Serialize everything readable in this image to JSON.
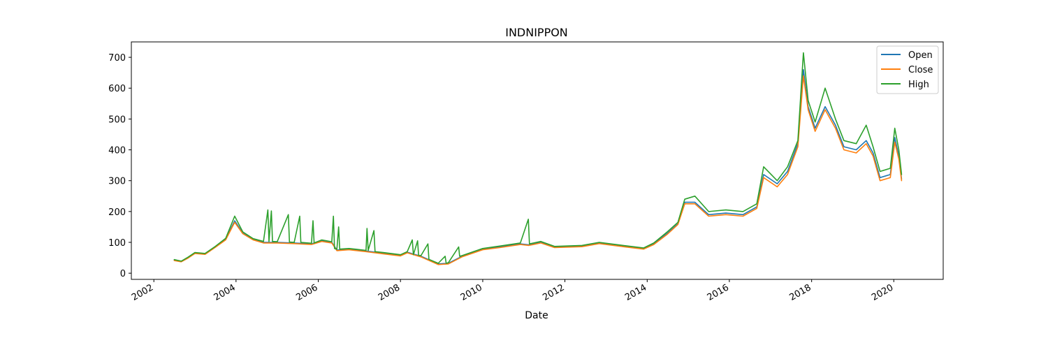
{
  "chart_data": {
    "type": "line",
    "title": "INDNIPPON",
    "xlabel": "Date",
    "ylabel": "",
    "x_axis_kind": "date",
    "xlim": [
      "2001-06-15",
      "2021-03-15"
    ],
    "ylim": [
      -20,
      750
    ],
    "x_ticks": [
      "2002",
      "2004",
      "2006",
      "2008",
      "2010",
      "2012",
      "2014",
      "2016",
      "2018",
      "2020"
    ],
    "y_ticks": [
      0,
      100,
      200,
      300,
      400,
      500,
      600,
      700
    ],
    "grid": false,
    "legend_position": "upper right",
    "colors": {
      "Open": "#1f77b4",
      "Close": "#ff7f0e",
      "High": "#2ca02c"
    },
    "series": [
      {
        "name": "Open",
        "points": [
          [
            "2002-07-01",
            42
          ],
          [
            "2002-09-01",
            38
          ],
          [
            "2002-11-01",
            50
          ],
          [
            "2003-01-01",
            65
          ],
          [
            "2003-04-01",
            62
          ],
          [
            "2003-07-01",
            85
          ],
          [
            "2003-10-01",
            110
          ],
          [
            "2003-12-20",
            170
          ],
          [
            "2004-03-01",
            130
          ],
          [
            "2004-06-01",
            110
          ],
          [
            "2004-09-01",
            100
          ],
          [
            "2005-01-01",
            100
          ],
          [
            "2005-06-01",
            98
          ],
          [
            "2005-11-01",
            95
          ],
          [
            "2006-02-01",
            105
          ],
          [
            "2006-05-01",
            100
          ],
          [
            "2006-06-15",
            75
          ],
          [
            "2006-10-01",
            78
          ],
          [
            "2007-03-01",
            72
          ],
          [
            "2007-08-01",
            65
          ],
          [
            "2008-01-01",
            58
          ],
          [
            "2008-03-01",
            68
          ],
          [
            "2008-07-01",
            55
          ],
          [
            "2008-12-01",
            30
          ],
          [
            "2009-03-01",
            32
          ],
          [
            "2009-07-01",
            55
          ],
          [
            "2010-01-01",
            78
          ],
          [
            "2010-06-01",
            85
          ],
          [
            "2010-12-01",
            95
          ],
          [
            "2011-02-15",
            92
          ],
          [
            "2011-06-01",
            100
          ],
          [
            "2011-10-01",
            85
          ],
          [
            "2012-06-01",
            88
          ],
          [
            "2012-11-01",
            98
          ],
          [
            "2013-06-01",
            88
          ],
          [
            "2013-12-01",
            80
          ],
          [
            "2014-03-01",
            95
          ],
          [
            "2014-07-01",
            130
          ],
          [
            "2014-10-01",
            160
          ],
          [
            "2014-12-01",
            230
          ],
          [
            "2015-03-01",
            230
          ],
          [
            "2015-07-01",
            190
          ],
          [
            "2015-12-01",
            195
          ],
          [
            "2016-05-01",
            190
          ],
          [
            "2016-09-01",
            215
          ],
          [
            "2016-11-01",
            320
          ],
          [
            "2017-03-01",
            290
          ],
          [
            "2017-06-01",
            330
          ],
          [
            "2017-09-01",
            420
          ],
          [
            "2017-10-20",
            660
          ],
          [
            "2017-12-01",
            540
          ],
          [
            "2018-02-01",
            470
          ],
          [
            "2018-05-01",
            540
          ],
          [
            "2018-08-01",
            480
          ],
          [
            "2018-10-15",
            410
          ],
          [
            "2019-02-01",
            400
          ],
          [
            "2019-05-01",
            430
          ],
          [
            "2019-07-01",
            390
          ],
          [
            "2019-09-01",
            310
          ],
          [
            "2019-12-01",
            320
          ],
          [
            "2020-01-10",
            440
          ],
          [
            "2020-02-15",
            380
          ],
          [
            "2020-03-10",
            305
          ]
        ]
      },
      {
        "name": "Close",
        "points": [
          [
            "2002-07-01",
            41
          ],
          [
            "2002-09-01",
            37
          ],
          [
            "2002-11-01",
            49
          ],
          [
            "2003-01-01",
            64
          ],
          [
            "2003-04-01",
            61
          ],
          [
            "2003-07-01",
            84
          ],
          [
            "2003-10-01",
            108
          ],
          [
            "2003-12-20",
            165
          ],
          [
            "2004-03-01",
            128
          ],
          [
            "2004-06-01",
            108
          ],
          [
            "2004-09-01",
            98
          ],
          [
            "2005-01-01",
            98
          ],
          [
            "2005-06-01",
            96
          ],
          [
            "2005-11-01",
            93
          ],
          [
            "2006-02-01",
            103
          ],
          [
            "2006-05-01",
            98
          ],
          [
            "2006-06-15",
            73
          ],
          [
            "2006-10-01",
            76
          ],
          [
            "2007-03-01",
            70
          ],
          [
            "2007-08-01",
            63
          ],
          [
            "2008-01-01",
            56
          ],
          [
            "2008-03-01",
            66
          ],
          [
            "2008-07-01",
            53
          ],
          [
            "2008-12-01",
            28
          ],
          [
            "2009-03-01",
            30
          ],
          [
            "2009-07-01",
            53
          ],
          [
            "2010-01-01",
            76
          ],
          [
            "2010-06-01",
            83
          ],
          [
            "2010-12-01",
            93
          ],
          [
            "2011-02-15",
            90
          ],
          [
            "2011-06-01",
            98
          ],
          [
            "2011-10-01",
            83
          ],
          [
            "2012-06-01",
            86
          ],
          [
            "2012-11-01",
            96
          ],
          [
            "2013-06-01",
            86
          ],
          [
            "2013-12-01",
            78
          ],
          [
            "2014-03-01",
            93
          ],
          [
            "2014-07-01",
            127
          ],
          [
            "2014-10-01",
            158
          ],
          [
            "2014-12-01",
            225
          ],
          [
            "2015-03-01",
            225
          ],
          [
            "2015-07-01",
            185
          ],
          [
            "2015-12-01",
            190
          ],
          [
            "2016-05-01",
            185
          ],
          [
            "2016-09-01",
            210
          ],
          [
            "2016-11-01",
            310
          ],
          [
            "2017-03-01",
            280
          ],
          [
            "2017-06-01",
            320
          ],
          [
            "2017-09-01",
            410
          ],
          [
            "2017-10-20",
            640
          ],
          [
            "2017-12-01",
            530
          ],
          [
            "2018-02-01",
            460
          ],
          [
            "2018-05-01",
            530
          ],
          [
            "2018-08-01",
            470
          ],
          [
            "2018-10-15",
            400
          ],
          [
            "2019-02-01",
            390
          ],
          [
            "2019-05-01",
            420
          ],
          [
            "2019-07-01",
            380
          ],
          [
            "2019-09-01",
            300
          ],
          [
            "2019-12-01",
            310
          ],
          [
            "2020-01-10",
            425
          ],
          [
            "2020-02-15",
            370
          ],
          [
            "2020-03-10",
            300
          ]
        ]
      },
      {
        "name": "High",
        "points": [
          [
            "2002-07-01",
            44
          ],
          [
            "2002-09-01",
            39
          ],
          [
            "2002-11-01",
            52
          ],
          [
            "2003-01-01",
            67
          ],
          [
            "2003-04-01",
            64
          ],
          [
            "2003-07-01",
            87
          ],
          [
            "2003-10-01",
            113
          ],
          [
            "2003-12-20",
            185
          ],
          [
            "2004-03-01",
            134
          ],
          [
            "2004-06-01",
            112
          ],
          [
            "2004-09-01",
            103
          ],
          [
            "2004-10-10",
            205
          ],
          [
            "2004-10-20",
            103
          ],
          [
            "2004-11-10",
            202
          ],
          [
            "2004-11-20",
            103
          ],
          [
            "2005-01-01",
            102
          ],
          [
            "2005-04-10",
            190
          ],
          [
            "2005-04-20",
            101
          ],
          [
            "2005-06-01",
            100
          ],
          [
            "2005-07-20",
            185
          ],
          [
            "2005-07-30",
            100
          ],
          [
            "2005-11-01",
            97
          ],
          [
            "2005-11-15",
            170
          ],
          [
            "2005-11-25",
            98
          ],
          [
            "2006-02-01",
            108
          ],
          [
            "2006-05-01",
            102
          ],
          [
            "2006-05-15",
            185
          ],
          [
            "2006-05-25",
            80
          ],
          [
            "2006-06-15",
            78
          ],
          [
            "2006-07-01",
            150
          ],
          [
            "2006-07-10",
            78
          ],
          [
            "2006-10-01",
            80
          ],
          [
            "2007-03-01",
            74
          ],
          [
            "2007-03-10",
            145
          ],
          [
            "2007-03-20",
            74
          ],
          [
            "2007-05-10",
            138
          ],
          [
            "2007-05-20",
            70
          ],
          [
            "2007-08-01",
            67
          ],
          [
            "2008-01-01",
            60
          ],
          [
            "2008-03-01",
            70
          ],
          [
            "2008-04-15",
            108
          ],
          [
            "2008-04-25",
            60
          ],
          [
            "2008-06-01",
            105
          ],
          [
            "2008-06-10",
            58
          ],
          [
            "2008-07-01",
            57
          ],
          [
            "2008-09-01",
            95
          ],
          [
            "2008-09-10",
            45
          ],
          [
            "2008-12-01",
            32
          ],
          [
            "2009-02-01",
            55
          ],
          [
            "2009-02-10",
            32
          ],
          [
            "2009-03-01",
            34
          ],
          [
            "2009-06-01",
            85
          ],
          [
            "2009-06-10",
            55
          ],
          [
            "2009-07-01",
            57
          ],
          [
            "2010-01-01",
            80
          ],
          [
            "2010-06-01",
            88
          ],
          [
            "2010-12-01",
            98
          ],
          [
            "2011-02-10",
            175
          ],
          [
            "2011-02-20",
            95
          ],
          [
            "2011-06-01",
            103
          ],
          [
            "2011-10-01",
            87
          ],
          [
            "2012-06-01",
            90
          ],
          [
            "2012-11-01",
            100
          ],
          [
            "2013-06-01",
            90
          ],
          [
            "2013-12-01",
            82
          ],
          [
            "2014-03-01",
            98
          ],
          [
            "2014-07-01",
            135
          ],
          [
            "2014-10-01",
            165
          ],
          [
            "2014-12-01",
            240
          ],
          [
            "2015-03-01",
            250
          ],
          [
            "2015-07-01",
            200
          ],
          [
            "2015-12-01",
            205
          ],
          [
            "2016-05-01",
            200
          ],
          [
            "2016-09-01",
            225
          ],
          [
            "2016-11-01",
            345
          ],
          [
            "2017-03-01",
            300
          ],
          [
            "2017-06-01",
            345
          ],
          [
            "2017-09-01",
            430
          ],
          [
            "2017-10-20",
            715
          ],
          [
            "2017-12-01",
            560
          ],
          [
            "2018-02-01",
            490
          ],
          [
            "2018-05-01",
            600
          ],
          [
            "2018-08-01",
            500
          ],
          [
            "2018-10-15",
            430
          ],
          [
            "2019-02-01",
            420
          ],
          [
            "2019-05-01",
            480
          ],
          [
            "2019-07-01",
            410
          ],
          [
            "2019-09-01",
            330
          ],
          [
            "2019-12-01",
            340
          ],
          [
            "2020-01-10",
            470
          ],
          [
            "2020-02-15",
            400
          ],
          [
            "2020-03-10",
            320
          ]
        ]
      }
    ]
  }
}
